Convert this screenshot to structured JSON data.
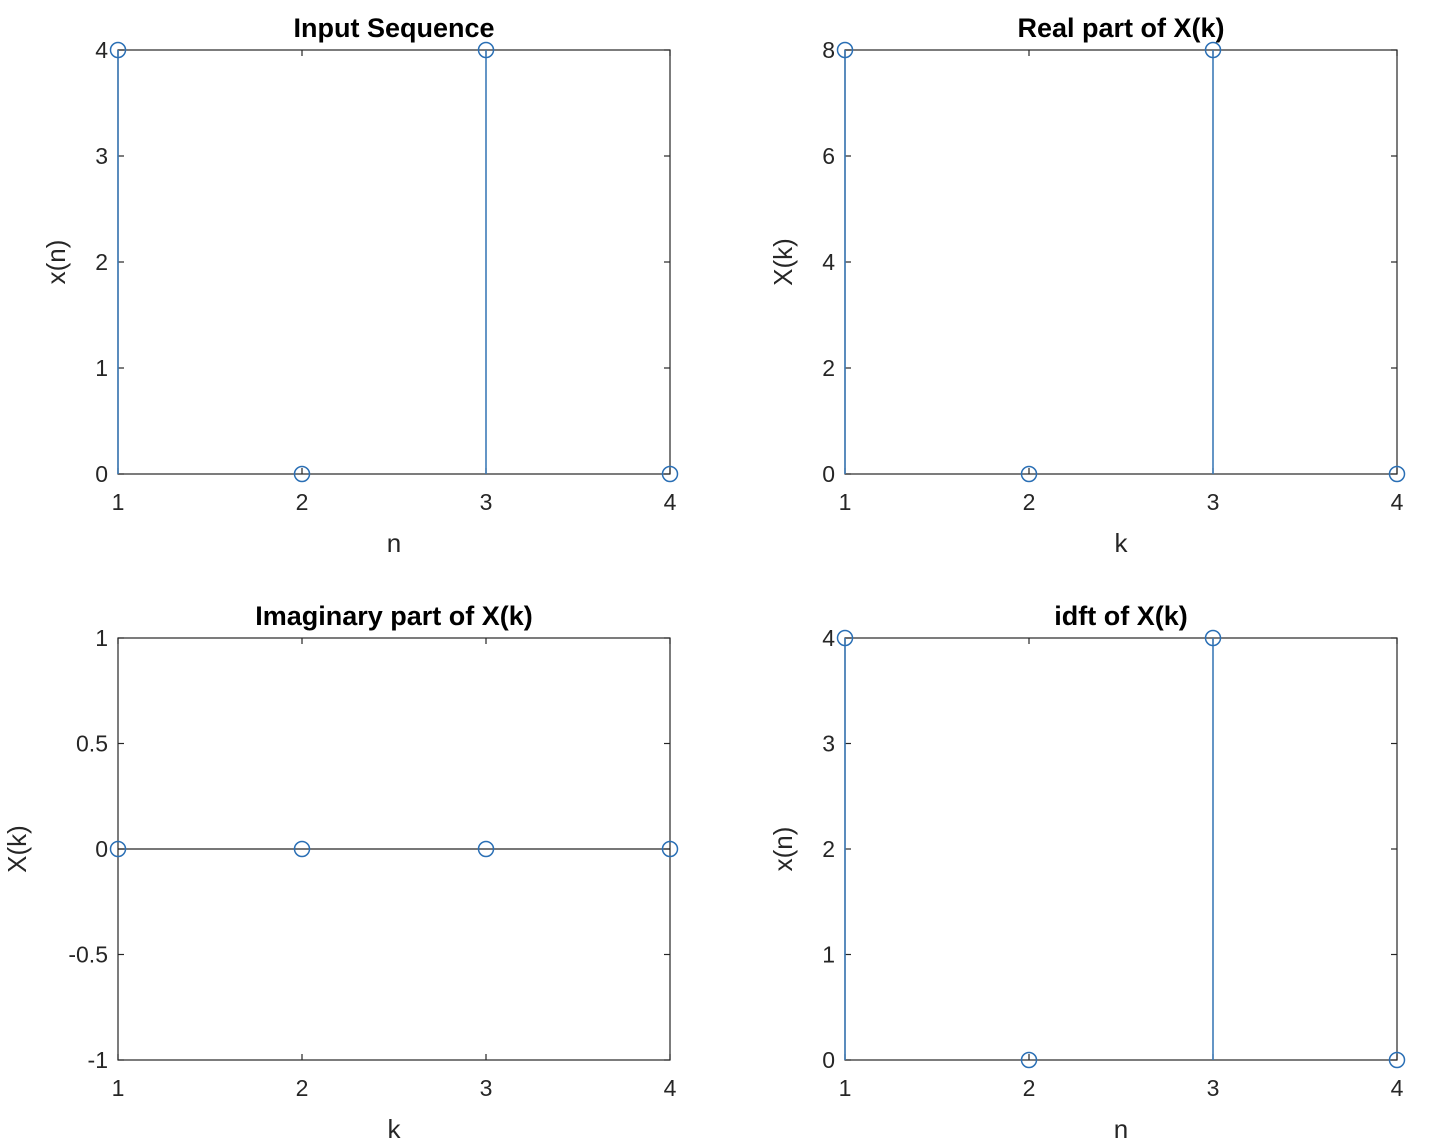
{
  "chart_data": [
    {
      "type": "stem",
      "title": "Input Sequence",
      "xlabel": "n",
      "ylabel": "x(n)",
      "x": [
        1,
        2,
        3,
        4
      ],
      "y": [
        4,
        0,
        4,
        0
      ],
      "xlim": [
        1,
        4
      ],
      "ylim": [
        0,
        4
      ],
      "xticks": [
        1,
        2,
        3,
        4
      ],
      "yticks": [
        0,
        1,
        2,
        3,
        4
      ],
      "xtick_labels": [
        "1",
        "2",
        "3",
        "4"
      ],
      "ytick_labels": [
        "0",
        "1",
        "2",
        "3",
        "4"
      ],
      "grid": false
    },
    {
      "type": "stem",
      "title": "Real part of X(k)",
      "xlabel": "k",
      "ylabel": "X(k)",
      "x": [
        1,
        2,
        3,
        4
      ],
      "y": [
        8,
        0,
        8,
        0
      ],
      "xlim": [
        1,
        4
      ],
      "ylim": [
        0,
        8
      ],
      "xticks": [
        1,
        2,
        3,
        4
      ],
      "yticks": [
        0,
        2,
        4,
        6,
        8
      ],
      "xtick_labels": [
        "1",
        "2",
        "3",
        "4"
      ],
      "ytick_labels": [
        "0",
        "2",
        "4",
        "6",
        "8"
      ],
      "grid": false
    },
    {
      "type": "stem",
      "title": "Imaginary part of X(k)",
      "xlabel": "k",
      "ylabel": "X(k)",
      "x": [
        1,
        2,
        3,
        4
      ],
      "y": [
        0,
        0,
        0,
        0
      ],
      "xlim": [
        1,
        4
      ],
      "ylim": [
        -1,
        1
      ],
      "xticks": [
        1,
        2,
        3,
        4
      ],
      "yticks": [
        -1,
        -0.5,
        0,
        0.5,
        1
      ],
      "xtick_labels": [
        "1",
        "2",
        "3",
        "4"
      ],
      "ytick_labels": [
        "-1",
        "-0.5",
        "0",
        "0.5",
        "1"
      ],
      "grid": false
    },
    {
      "type": "stem",
      "title": "idft of X(k)",
      "xlabel": "n",
      "ylabel": "x(n)",
      "x": [
        1,
        2,
        3,
        4
      ],
      "y": [
        4,
        0,
        4,
        0
      ],
      "xlim": [
        1,
        4
      ],
      "ylim": [
        0,
        4
      ],
      "xticks": [
        1,
        2,
        3,
        4
      ],
      "yticks": [
        0,
        1,
        2,
        3,
        4
      ],
      "xtick_labels": [
        "1",
        "2",
        "3",
        "4"
      ],
      "ytick_labels": [
        "0",
        "1",
        "2",
        "3",
        "4"
      ],
      "grid": false
    }
  ],
  "colors": {
    "stem": "#3d7bb8",
    "marker": "#2a6fb5",
    "axes": "#262626",
    "title": "#000000"
  }
}
